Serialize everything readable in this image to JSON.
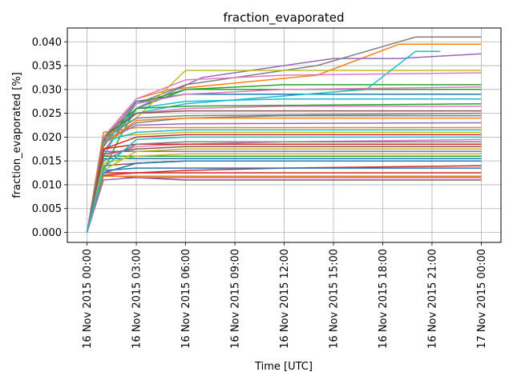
{
  "chart_data": {
    "type": "line",
    "title": "fraction_evaporated",
    "xlabel": "Time  [UTC]",
    "ylabel": "fraction_evaporated  [%]",
    "x_unit": "hours",
    "x_ticks": [
      {
        "hours": 0,
        "label": "16 Nov 2015 00:00"
      },
      {
        "hours": 3,
        "label": "16 Nov 2015 03:00"
      },
      {
        "hours": 6,
        "label": "16 Nov 2015 06:00"
      },
      {
        "hours": 9,
        "label": "16 Nov 2015 09:00"
      },
      {
        "hours": 12,
        "label": "16 Nov 2015 12:00"
      },
      {
        "hours": 15,
        "label": "16 Nov 2015 15:00"
      },
      {
        "hours": 18,
        "label": "16 Nov 2015 18:00"
      },
      {
        "hours": 21,
        "label": "16 Nov 2015 21:00"
      },
      {
        "hours": 24,
        "label": "17 Nov 2015 00:00"
      }
    ],
    "xlim": [
      -1.2,
      25.2
    ],
    "ylim": [
      -0.0021,
      0.0429
    ],
    "y_ticks": [
      0.0,
      0.005,
      0.01,
      0.015,
      0.02,
      0.025,
      0.03,
      0.035,
      0.04
    ],
    "y_tick_labels": [
      "0.000",
      "0.005",
      "0.010",
      "0.015",
      "0.020",
      "0.025",
      "0.030",
      "0.035",
      "0.040"
    ],
    "grid": true,
    "colors": [
      "#1f77b4",
      "#ff7f0e",
      "#2ca02c",
      "#d62728",
      "#9467bd",
      "#8c564b",
      "#e377c2",
      "#7f7f7f",
      "#bcbd22",
      "#17becf"
    ],
    "series": [
      {
        "x": [
          0,
          1,
          2,
          3,
          4,
          6,
          24
        ],
        "values": [
          0,
          0.019,
          0.0235,
          0.0275,
          0.028,
          0.029,
          0.029
        ]
      },
      {
        "x": [
          0,
          1,
          2,
          3,
          5,
          14,
          19,
          24
        ],
        "values": [
          0,
          0.018,
          0.024,
          0.028,
          0.03,
          0.033,
          0.0395,
          0.0395
        ]
      },
      {
        "x": [
          0,
          1,
          2,
          3,
          6,
          12,
          24
        ],
        "values": [
          0,
          0.013,
          0.02,
          0.026,
          0.03,
          0.031,
          0.031
        ]
      },
      {
        "x": [
          0,
          1,
          3,
          6,
          12,
          24
        ],
        "values": [
          0,
          0.012,
          0.0125,
          0.013,
          0.0135,
          0.014
        ]
      },
      {
        "x": [
          0,
          1,
          3,
          7,
          15,
          19,
          24
        ],
        "values": [
          0,
          0.017,
          0.026,
          0.0325,
          0.0365,
          0.0365,
          0.0375
        ]
      },
      {
        "x": [
          0,
          1,
          3,
          6,
          24
        ],
        "values": [
          0,
          0.012,
          0.0115,
          0.011,
          0.011
        ]
      },
      {
        "x": [
          0,
          1,
          3,
          6,
          12,
          24
        ],
        "values": [
          0,
          0.016,
          0.018,
          0.0185,
          0.019,
          0.0195
        ]
      },
      {
        "x": [
          0,
          1,
          3,
          6,
          14,
          20,
          24
        ],
        "values": [
          0,
          0.0195,
          0.027,
          0.031,
          0.035,
          0.041,
          0.041
        ]
      },
      {
        "x": [
          0,
          1,
          3,
          6,
          24
        ],
        "values": [
          0,
          0.02,
          0.024,
          0.034,
          0.034
        ]
      },
      {
        "x": [
          0,
          1,
          2,
          3,
          6,
          17,
          20,
          21.5
        ],
        "values": [
          0,
          0.016,
          0.022,
          0.025,
          0.027,
          0.03,
          0.038,
          0.038
        ]
      },
      {
        "x": [
          0,
          1,
          3,
          6,
          24
        ],
        "values": [
          0,
          0.0155,
          0.0155,
          0.0155,
          0.0155
        ]
      },
      {
        "x": [
          0,
          1,
          3,
          6,
          24
        ],
        "values": [
          0,
          0.021,
          0.022,
          0.022,
          0.022
        ]
      },
      {
        "x": [
          0,
          1,
          3,
          6,
          24
        ],
        "values": [
          0,
          0.018,
          0.027,
          0.03,
          0.03
        ]
      },
      {
        "x": [
          0,
          1,
          3,
          6,
          24
        ],
        "values": [
          0,
          0.0125,
          0.0125,
          0.0125,
          0.0125
        ]
      },
      {
        "x": [
          0,
          1,
          3,
          6,
          24
        ],
        "values": [
          0,
          0.017,
          0.017,
          0.017,
          0.017
        ]
      },
      {
        "x": [
          0,
          1,
          3,
          6,
          24
        ],
        "values": [
          0,
          0.014,
          0.0145,
          0.015,
          0.015
        ]
      },
      {
        "x": [
          0,
          1,
          3,
          6,
          12,
          24
        ],
        "values": [
          0,
          0.02,
          0.025,
          0.026,
          0.0265,
          0.0265
        ]
      },
      {
        "x": [
          0,
          1,
          3,
          6,
          12,
          24
        ],
        "values": [
          0,
          0.019,
          0.023,
          0.024,
          0.0245,
          0.0245
        ]
      },
      {
        "x": [
          0,
          1,
          3,
          6,
          24
        ],
        "values": [
          0,
          0.02,
          0.0205,
          0.021,
          0.021
        ]
      },
      {
        "x": [
          0,
          1,
          3,
          6,
          12,
          24
        ],
        "values": [
          0,
          0.0185,
          0.026,
          0.0275,
          0.028,
          0.028
        ]
      },
      {
        "x": [
          0,
          1,
          3,
          6,
          24
        ],
        "values": [
          0,
          0.013,
          0.0135,
          0.0135,
          0.0135
        ]
      },
      {
        "x": [
          0,
          1,
          3,
          6,
          24
        ],
        "values": [
          0,
          0.0118,
          0.0118,
          0.0118,
          0.0118
        ]
      },
      {
        "x": [
          0,
          1,
          3,
          6,
          24
        ],
        "values": [
          0,
          0.016,
          0.016,
          0.016,
          0.016
        ]
      },
      {
        "x": [
          0,
          1,
          3,
          6,
          24
        ],
        "values": [
          0,
          0.0175,
          0.0185,
          0.0185,
          0.0185
        ]
      },
      {
        "x": [
          0,
          1,
          3,
          6,
          24
        ],
        "values": [
          0,
          0.019,
          0.0225,
          0.0228,
          0.023
        ]
      },
      {
        "x": [
          0,
          1,
          3,
          6,
          24
        ],
        "values": [
          0,
          0.02,
          0.025,
          0.0255,
          0.0255
        ]
      },
      {
        "x": [
          0,
          1,
          3,
          6,
          12,
          24
        ],
        "values": [
          0,
          0.02,
          0.027,
          0.029,
          0.03,
          0.0305
        ]
      },
      {
        "x": [
          0,
          1,
          3,
          6,
          24
        ],
        "values": [
          0,
          0.015,
          0.0185,
          0.019,
          0.019
        ]
      },
      {
        "x": [
          0,
          1,
          3,
          6,
          24
        ],
        "values": [
          0,
          0.0145,
          0.016,
          0.0165,
          0.0165
        ]
      },
      {
        "x": [
          0,
          1,
          3,
          6,
          24
        ],
        "values": [
          0,
          0.019,
          0.021,
          0.0215,
          0.0215
        ]
      },
      {
        "x": [
          0,
          1,
          3,
          6,
          24
        ],
        "values": [
          0,
          0.0125,
          0.0145,
          0.015,
          0.015
        ]
      },
      {
        "x": [
          0,
          1,
          3,
          6,
          24
        ],
        "values": [
          0,
          0.0185,
          0.0235,
          0.024,
          0.024
        ]
      },
      {
        "x": [
          0,
          1,
          3,
          6,
          24
        ],
        "values": [
          0,
          0.02,
          0.026,
          0.0265,
          0.027
        ]
      },
      {
        "x": [
          0,
          1,
          3,
          6,
          24
        ],
        "values": [
          0,
          0.0175,
          0.02,
          0.0205,
          0.0205
        ]
      },
      {
        "x": [
          0,
          1,
          3,
          6,
          24
        ],
        "values": [
          0,
          0.011,
          0.0115,
          0.0115,
          0.0115
        ]
      },
      {
        "x": [
          0,
          1,
          3,
          6,
          24
        ],
        "values": [
          0,
          0.0165,
          0.0175,
          0.018,
          0.018
        ]
      },
      {
        "x": [
          0,
          1,
          3,
          6,
          12,
          24
        ],
        "values": [
          0,
          0.02,
          0.028,
          0.032,
          0.033,
          0.0335
        ]
      },
      {
        "x": [
          0,
          1,
          3,
          6,
          24
        ],
        "values": [
          0,
          0.0195,
          0.024,
          0.0245,
          0.025
        ]
      },
      {
        "x": [
          0,
          1,
          3,
          6,
          24
        ],
        "values": [
          0,
          0.013,
          0.017,
          0.0175,
          0.0175
        ]
      },
      {
        "x": [
          0,
          1,
          3,
          6,
          24
        ],
        "values": [
          0,
          0.0135,
          0.0195,
          0.02,
          0.02
        ]
      }
    ]
  }
}
